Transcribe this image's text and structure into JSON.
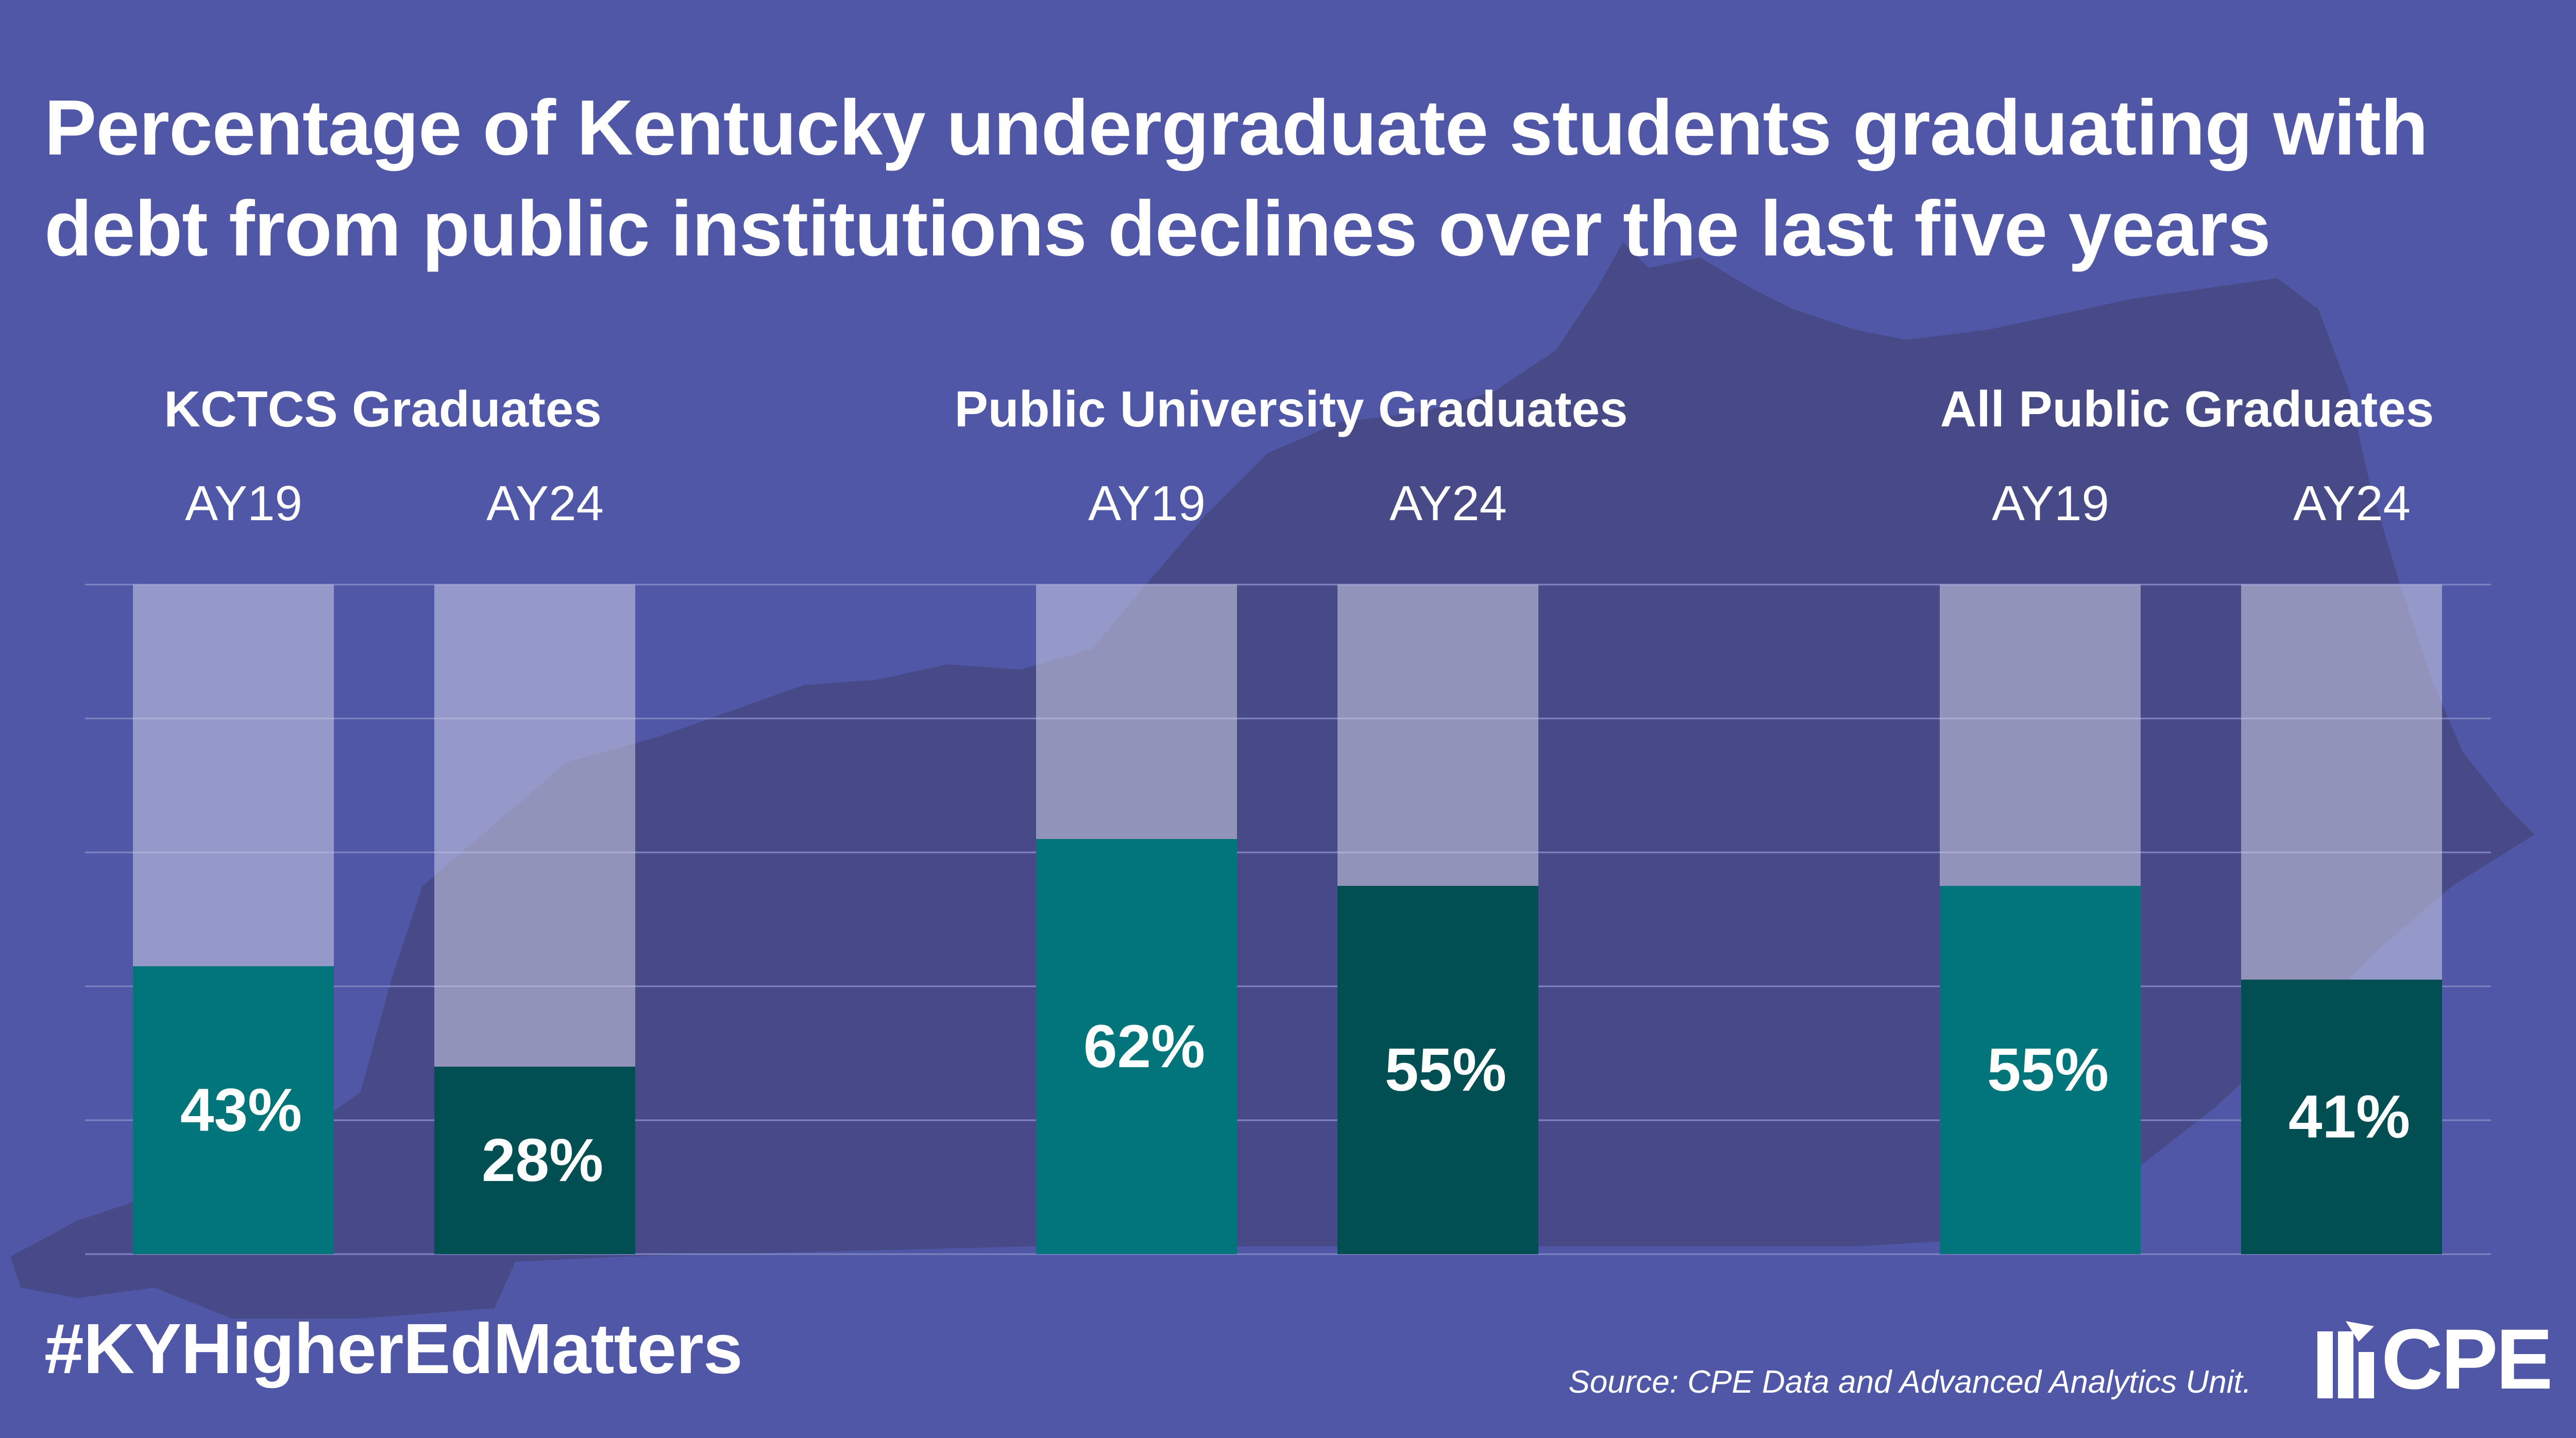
{
  "title": "Percentage of Kentucky undergraduate students graduating with debt from public institutions declines over the last five years",
  "footer": {
    "hashtag": "#KYHigherEdMatters",
    "source": "Source: CPE Data and Advanced Analytics Unit.",
    "logo_text": "CPE"
  },
  "colors": {
    "background": "#5057a6",
    "map_silhouette": "#474a86",
    "bar_track": "rgba(205,208,232,0.55)",
    "ay19_fill": "#02757a",
    "ay24_fill": "#014f52",
    "gridline": "#7f84c2"
  },
  "chart_data": {
    "type": "bar",
    "ylim": [
      0,
      100
    ],
    "grid": true,
    "groups": [
      {
        "title": "KCTCS Graduates",
        "categories": [
          "AY19",
          "AY24"
        ],
        "values": [
          43,
          28
        ],
        "labels": [
          "43%",
          "28%"
        ]
      },
      {
        "title": "Public University Graduates",
        "categories": [
          "AY19",
          "AY24"
        ],
        "values": [
          62,
          55
        ],
        "labels": [
          "62%",
          "55%"
        ]
      },
      {
        "title": "All Public Graduates",
        "categories": [
          "AY19",
          "AY24"
        ],
        "values": [
          55,
          41
        ],
        "labels": [
          "55%",
          "41%"
        ]
      }
    ]
  }
}
